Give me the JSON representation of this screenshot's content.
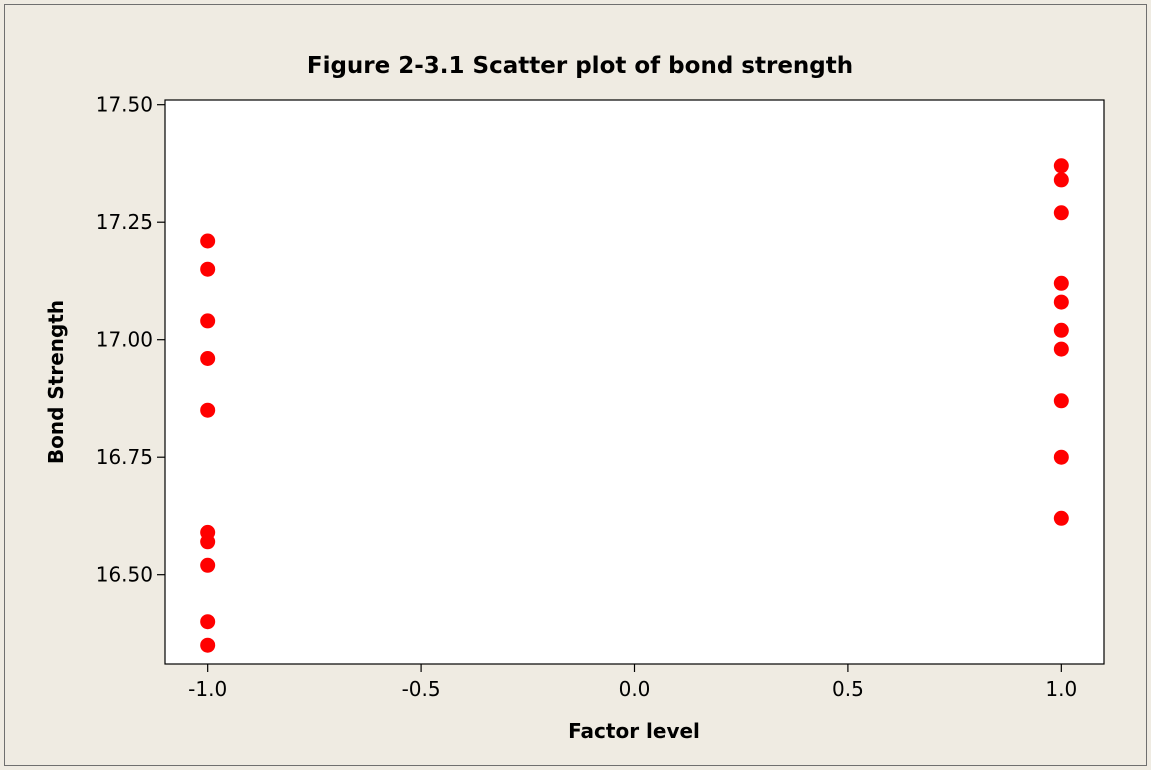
{
  "chart_data": {
    "type": "scatter",
    "title": "Figure 2-3.1 Scatter plot of bond strength",
    "xlabel": "Factor level",
    "ylabel": "Bond Strength",
    "xlim": [
      -1.1,
      1.1
    ],
    "ylim": [
      16.31,
      17.51
    ],
    "x_ticks": [
      -1.0,
      -0.5,
      0.0,
      0.5,
      1.0
    ],
    "x_tick_labels": [
      "-1.0",
      "-0.5",
      "0.0",
      "0.5",
      "1.0"
    ],
    "y_ticks": [
      16.5,
      16.75,
      17.0,
      17.25,
      17.5
    ],
    "y_tick_labels": [
      "16.50",
      "16.75",
      "17.00",
      "17.25",
      "17.50"
    ],
    "grid": false,
    "marker_color": "#ff0000",
    "series": [
      {
        "x": [
          -1,
          -1,
          -1,
          -1,
          -1,
          -1,
          -1,
          -1,
          -1,
          -1
        ],
        "y": [
          17.21,
          17.15,
          17.04,
          16.96,
          16.85,
          16.59,
          16.57,
          16.52,
          16.4,
          16.35
        ]
      },
      {
        "x": [
          1,
          1,
          1,
          1,
          1,
          1,
          1,
          1,
          1,
          1
        ],
        "y": [
          17.37,
          17.34,
          17.27,
          17.12,
          17.08,
          17.02,
          16.98,
          16.87,
          16.75,
          16.62
        ]
      }
    ]
  }
}
